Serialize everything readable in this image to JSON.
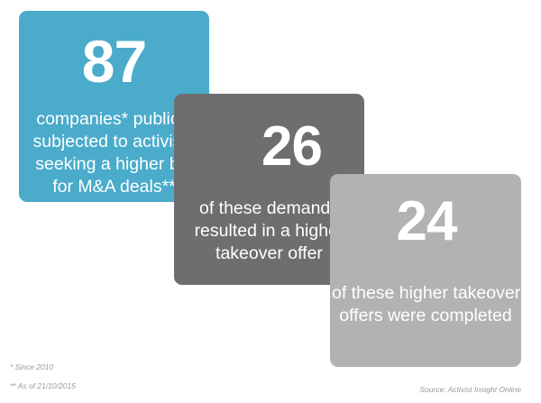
{
  "cards": [
    {
      "number": "87",
      "lines": [
        "companies* publicly",
        "subjected to activists",
        "seeking a higher bid",
        "for M&A deals**"
      ],
      "color": "#4aabcb"
    },
    {
      "number": "26",
      "lines": [
        "of these demands",
        "resulted in a higher",
        "takeover offer"
      ],
      "color": "#6d6e70"
    },
    {
      "number": "24",
      "lines": [
        "of these higher takeover",
        "offers were completed"
      ],
      "color": "#b1b2b4"
    }
  ],
  "footnotes": {
    "since": "* Since 2010",
    "as_of": "** As of 21/10/2015"
  },
  "source": "Source: Activist Insight Online"
}
